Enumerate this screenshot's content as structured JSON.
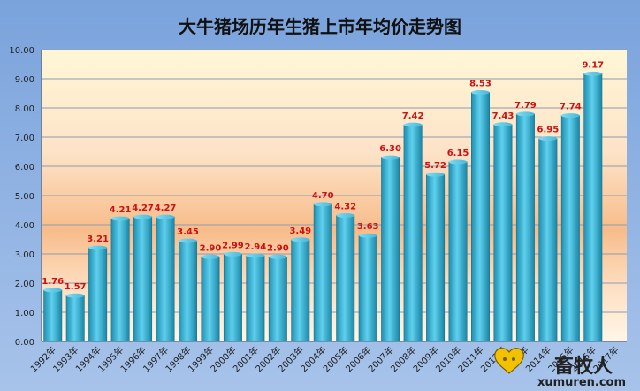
{
  "chart_data": {
    "type": "bar",
    "title": "大牛猪场历年生猪上市年均价走势图",
    "xlabel": "",
    "ylabel": "",
    "ylim": [
      0,
      10
    ],
    "yticks": [
      "0.00",
      "1.00",
      "2.00",
      "3.00",
      "4.00",
      "5.00",
      "6.00",
      "7.00",
      "8.00",
      "9.00",
      "10.00"
    ],
    "grid": true,
    "legend": "none",
    "categories": [
      "1992年",
      "1993年",
      "1994年",
      "1995年",
      "1996年",
      "1997年",
      "1998年",
      "1999年",
      "2000年",
      "2001年",
      "2002年",
      "2003年",
      "2004年",
      "2005年",
      "2006年",
      "2007年",
      "2008年",
      "2009年",
      "2010年",
      "2011年",
      "2012年",
      "2013年",
      "2014年",
      "2015年",
      "2016年",
      "2017年"
    ],
    "values": [
      1.76,
      1.57,
      3.21,
      4.21,
      4.27,
      4.27,
      3.45,
      2.9,
      2.99,
      2.94,
      2.9,
      3.49,
      4.7,
      4.32,
      3.63,
      6.3,
      7.42,
      5.72,
      6.15,
      8.53,
      7.43,
      7.79,
      6.95,
      7.74,
      9.17,
      null
    ],
    "data_labels": [
      "1.76",
      "1.57",
      "3.21",
      "4.21",
      "4.27",
      "4.27",
      "3.45",
      "2.90",
      "2.99",
      "2.94",
      "2.90",
      "3.49",
      "4.70",
      "4.32",
      "3.63",
      "6.30",
      "7.42",
      "5.72",
      "6.15",
      "8.53",
      "7.43",
      "7.79",
      "6.95",
      "7.74",
      "9.17",
      ""
    ],
    "colors": {
      "bar": "#2aa8cc",
      "data_label": "#cc1111",
      "title_bg": "#7fa6dc",
      "outer_bg": "#8fb2e2"
    }
  },
  "watermark": {
    "name": "畜牧人",
    "url": "xumuren.com"
  }
}
